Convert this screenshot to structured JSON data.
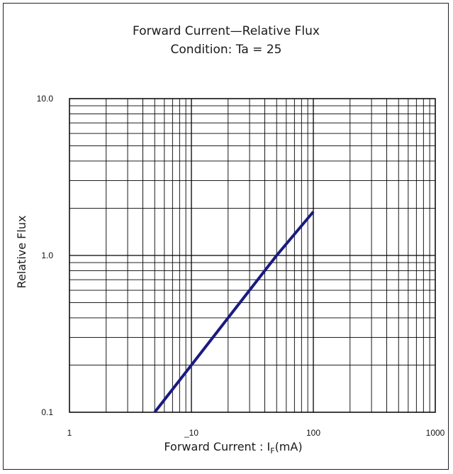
{
  "chart_data": {
    "type": "line",
    "title": "Forward Current—Relative Flux",
    "subtitle": "Condition: Ta = 25",
    "xlabel": "Forward Current : ",
    "xlabel_symbol": "I",
    "xlabel_subscript": "F",
    "xlabel_unit": "(mA)",
    "ylabel": "Relative Flux",
    "x_scale": "log",
    "y_scale": "log",
    "xlim": [
      1,
      1000
    ],
    "ylim": [
      0.1,
      10
    ],
    "grid": true,
    "x_ticks": [
      {
        "value": 1,
        "label": "1"
      },
      {
        "value": 10,
        "label": "_10"
      },
      {
        "value": 100,
        "label": "100"
      },
      {
        "value": 1000,
        "label": "1000"
      }
    ],
    "y_ticks": [
      {
        "value": 0.1,
        "label": "0.1"
      },
      {
        "value": 1,
        "label": "1.0"
      },
      {
        "value": 10,
        "label": "10.0"
      }
    ],
    "series": [
      {
        "color": "#1a1a80",
        "x": [
          5,
          10,
          20,
          50,
          100
        ],
        "y": [
          0.1,
          0.2,
          0.4,
          1.0,
          1.9
        ]
      }
    ]
  }
}
